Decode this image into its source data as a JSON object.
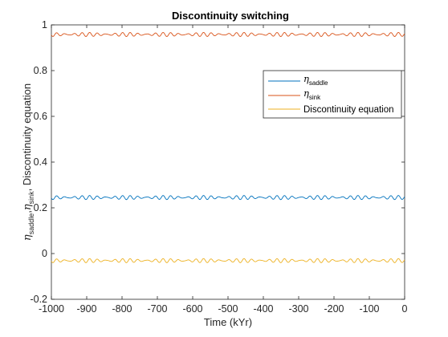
{
  "chart_data": {
    "type": "line",
    "title": "Discontinuity switching",
    "xlabel": "Time (kYr)",
    "ylabel": {
      "eta": "η",
      "sub_saddle": "saddle",
      "sep1": ",",
      "sub_sink": "sink",
      "rest": ", Discontinuity equation"
    },
    "xlim": [
      -1000,
      0
    ],
    "ylim": [
      -0.2,
      1
    ],
    "xticks": [
      "-1000",
      "-900",
      "-800",
      "-700",
      "-600",
      "-500",
      "-400",
      "-300",
      "-200",
      "-100",
      "0"
    ],
    "yticks": [
      "-0.2",
      "0",
      "0.2",
      "0.4",
      "0.6",
      "0.8",
      "1"
    ],
    "grid": false,
    "legend_position": "top-right",
    "series": [
      {
        "name": "η_saddle",
        "legend": {
          "sym": "η",
          "sub": "saddle"
        },
        "color": "#0072BD",
        "mean": 0.245,
        "amp_primary": 0.0055,
        "period_primary": 23,
        "amp_secondary": 0.0035,
        "period_secondary": 19
      },
      {
        "name": "η_sink",
        "legend": {
          "sym": "η",
          "sub": "sink"
        },
        "color": "#D95319",
        "mean": 0.958,
        "amp_primary": 0.0055,
        "period_primary": 23,
        "amp_secondary": 0.0035,
        "period_secondary": 19
      },
      {
        "name": "Discontinuity equation",
        "legend": {
          "text": "Discontinuity equation"
        },
        "color": "#EDB120",
        "mean": -0.031,
        "amp_primary": 0.0055,
        "period_primary": 23,
        "amp_secondary": 0.0035,
        "period_secondary": 19
      }
    ]
  }
}
